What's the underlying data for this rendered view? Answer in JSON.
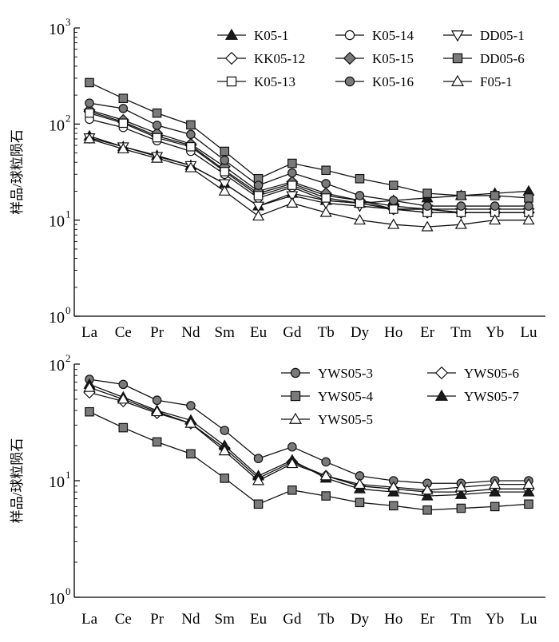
{
  "chart_data": [
    {
      "type": "line",
      "y_scale": "log",
      "ylim": [
        1,
        1000
      ],
      "ylabel": "样品/球粒陨石",
      "y_ticks": [
        {
          "base": "10",
          "exp": "0"
        },
        {
          "base": "10",
          "exp": "1"
        },
        {
          "base": "10",
          "exp": "2"
        },
        {
          "base": "10",
          "exp": "3"
        }
      ],
      "categories": [
        "La",
        "Ce",
        "Pr",
        "Nd",
        "Sm",
        "Eu",
        "Gd",
        "Tb",
        "Dy",
        "Ho",
        "Er",
        "Tm",
        "Yb",
        "Lu"
      ],
      "legend_position": "top-right",
      "series": [
        {
          "name": "K05-1",
          "marker": "triangle-up",
          "fill": "black",
          "values": [
            75,
            58,
            47,
            37,
            24,
            14,
            19,
            16,
            15,
            16,
            17,
            18,
            19,
            20
          ]
        },
        {
          "name": "K05-14",
          "marker": "circle",
          "fill": "white",
          "values": [
            112,
            92,
            67,
            52,
            30,
            17,
            22,
            16,
            15,
            13,
            13,
            13,
            13,
            13
          ]
        },
        {
          "name": "DD05-1",
          "marker": "triangle-down",
          "fill": "white",
          "values": [
            72,
            58,
            46,
            37,
            24,
            14,
            18,
            15,
            14,
            13,
            13,
            12,
            12,
            12
          ]
        },
        {
          "name": "KK05-12",
          "marker": "diamond",
          "fill": "white",
          "values": [
            135,
            105,
            75,
            60,
            33,
            19,
            24,
            18,
            16,
            13,
            12,
            12,
            12,
            12
          ]
        },
        {
          "name": "K05-15",
          "marker": "diamond",
          "fill": "gray",
          "values": [
            140,
            110,
            80,
            62,
            36,
            20,
            25,
            19,
            16,
            14,
            13,
            12,
            12,
            12
          ]
        },
        {
          "name": "DD05-6",
          "marker": "square",
          "fill": "gray",
          "values": [
            270,
            185,
            130,
            98,
            52,
            27,
            39,
            33,
            27,
            23,
            19,
            18,
            18,
            17
          ]
        },
        {
          "name": "K05-13",
          "marker": "square",
          "fill": "white",
          "values": [
            130,
            102,
            72,
            58,
            32,
            18,
            23,
            17,
            15,
            13,
            12,
            12,
            12,
            12
          ]
        },
        {
          "name": "K05-16",
          "marker": "circle",
          "fill": "gray",
          "values": [
            165,
            145,
            97,
            78,
            42,
            23,
            31,
            24,
            18,
            16,
            14,
            14,
            14,
            14
          ]
        },
        {
          "name": "F05-1",
          "marker": "triangle-up",
          "fill": "white",
          "values": [
            70,
            55,
            44,
            35,
            20,
            11,
            15,
            12,
            10,
            9,
            8.5,
            9,
            10,
            10
          ]
        }
      ]
    },
    {
      "type": "line",
      "y_scale": "log",
      "ylim": [
        1,
        100
      ],
      "ylabel": "样品/球粒陨石",
      "y_ticks": [
        {
          "base": "10",
          "exp": "0"
        },
        {
          "base": "10",
          "exp": "1"
        },
        {
          "base": "10",
          "exp": "2"
        }
      ],
      "categories": [
        "La",
        "Ce",
        "Pr",
        "Nd",
        "Sm",
        "Eu",
        "Gd",
        "Tb",
        "Dy",
        "Ho",
        "Er",
        "Tm",
        "Yb",
        "Lu"
      ],
      "legend_position": "top-right",
      "series": [
        {
          "name": "YWS05-3",
          "marker": "circle",
          "fill": "gray",
          "values": [
            74,
            67,
            49,
            44,
            27,
            15.5,
            19.5,
            14.5,
            11,
            10,
            9.5,
            9.5,
            10,
            10
          ]
        },
        {
          "name": "YWS05-6",
          "marker": "diamond",
          "fill": "white",
          "values": [
            57,
            48,
            38,
            31,
            19,
            10.5,
            14.5,
            11,
            9,
            8.5,
            8,
            8,
            8.5,
            8.5
          ]
        },
        {
          "name": "YWS05-4",
          "marker": "square",
          "fill": "gray",
          "values": [
            39,
            28.5,
            21.5,
            17,
            10.5,
            6.3,
            8.3,
            7.4,
            6.5,
            6.1,
            5.6,
            5.8,
            6,
            6.3
          ]
        },
        {
          "name": "YWS05-7",
          "marker": "triangle-up",
          "fill": "black",
          "values": [
            67,
            52,
            40,
            33,
            20,
            11,
            15,
            10.5,
            8.5,
            8,
            7.4,
            7.6,
            8,
            8
          ]
        },
        {
          "name": "YWS05-5",
          "marker": "triangle-up",
          "fill": "white",
          "values": [
            63,
            50,
            39,
            31,
            18,
            10,
            14,
            11,
            9.3,
            8.8,
            8.3,
            8.8,
            9.3,
            9.3
          ]
        }
      ]
    }
  ]
}
